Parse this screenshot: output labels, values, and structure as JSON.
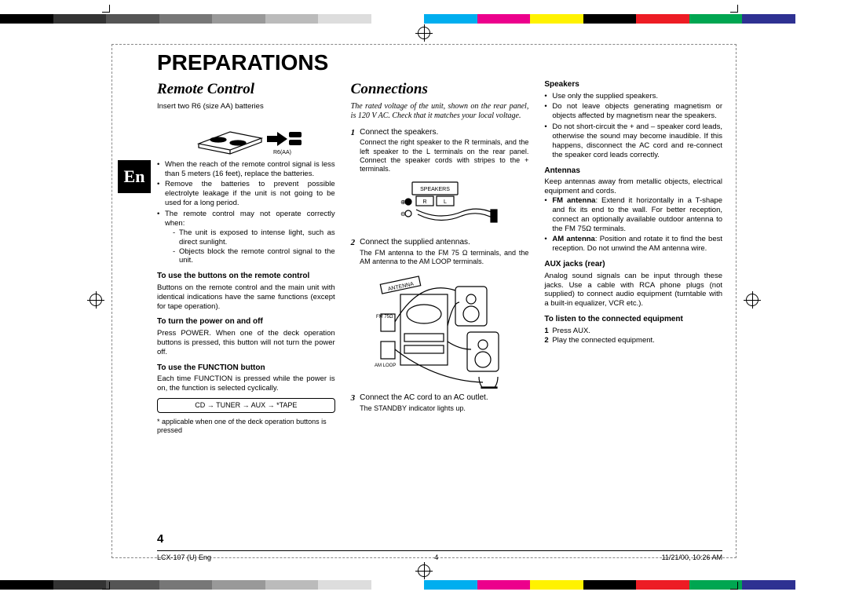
{
  "print": {
    "colorbar_colors": [
      "#000000",
      "#333333",
      "#555555",
      "#777777",
      "#999999",
      "#bbbbbb",
      "#dddddd",
      "#ffffff",
      "#00aeef",
      "#ec008c",
      "#fff200",
      "#000000",
      "#ed1c24",
      "#00a651",
      "#2e3192",
      "#ffffff"
    ],
    "lang_tab": "En"
  },
  "page": {
    "title": "PREPARATIONS",
    "page_number": "4"
  },
  "footer": {
    "doc_ref": "LCX-107 (U) Eng",
    "page": "4",
    "timestamp": "11/21/00, 10:26 AM"
  },
  "col1": {
    "section": "Remote Control",
    "intro_line": "Insert two R6 (size AA) batteries",
    "battery_caption": "R6(AA)",
    "bullets": [
      "When the reach of the remote control signal is less than 5 meters (16 feet), replace the batteries.",
      "Remove the batteries to prevent possible electrolyte leakage if the unit is not going to be used for a long period.",
      "The remote control may not operate correctly when:"
    ],
    "sub_dashes": [
      "The unit is exposed to intense light, such as direct sunlight.",
      "Objects block the remote control signal to the unit."
    ],
    "sub1_head": "To use the buttons on the remote control",
    "sub1_body": "Buttons on the remote control and the main unit with identical indications have the same functions (except for tape operation).",
    "sub2_head": "To turn the power on and off",
    "sub2_body": "Press POWER. When one of the deck operation buttons is pressed, this button will not turn the power off.",
    "sub3_head": "To use the FUNCTION button",
    "sub3_body": "Each time FUNCTION is pressed while the power is on, the function is selected cyclically.",
    "cycle": "CD  →  TUNER  →  AUX  →  *TAPE",
    "footnote": "* applicable when one of the deck operation buttons is pressed"
  },
  "col2": {
    "section": "Connections",
    "intro": "The rated voltage of the unit, shown on the rear panel, is 120 V AC. Check that it matches your local voltage.",
    "speaker_label": "SPEAKERS",
    "antenna_label": "ANTENNA",
    "fm_label": "FM 75Ω",
    "am_label": "AM LOOP",
    "steps": [
      {
        "num": "1",
        "head": "Connect the speakers.",
        "sub": "Connect the right speaker to the R terminals, and the left speaker to the L terminals on the rear panel. Connect the speaker cords with stripes to the + terminals."
      },
      {
        "num": "2",
        "head": "Connect the supplied antennas.",
        "sub": "The FM antenna to the FM 75 Ω terminals, and the AM antenna to the AM LOOP terminals."
      },
      {
        "num": "3",
        "head": "Connect the AC cord to an AC outlet.",
        "sub": "The STANDBY indicator lights up."
      }
    ]
  },
  "col3": {
    "s1_head": "Speakers",
    "s1_bullets": [
      "Use only the supplied speakers.",
      "Do not leave objects generating magnetism or objects affected by magnetism near the speakers.",
      "Do not short-circuit the + and – speaker cord leads, otherwise the sound may become inaudible. If this happens, disconnect the AC cord and re-connect the speaker cord leads correctly."
    ],
    "s2_head": "Antennas",
    "s2_intro": "Keep antennas away from metallic objects, electrical equipment and cords.",
    "s2_bullets": [
      "FM antenna: Extend it horizontally in a T-shape and fix its end to the wall. For better reception, connect an optionally available outdoor antenna to the FM 75Ω terminals.",
      "AM antenna: Position and rotate it to find the best reception. Do not unwind the AM antenna wire."
    ],
    "s3_head": "AUX jacks (rear)",
    "s3_body": "Analog sound signals can be input through these jacks. Use a cable with RCA phone plugs (not supplied) to connect audio equipment (turntable with a built-in equalizer, VCR etc.).",
    "s4_head": "To listen to the connected equipment",
    "s4_list": [
      {
        "n": "1",
        "t": "Press AUX."
      },
      {
        "n": "2",
        "t": "Play the connected equipment."
      }
    ]
  }
}
